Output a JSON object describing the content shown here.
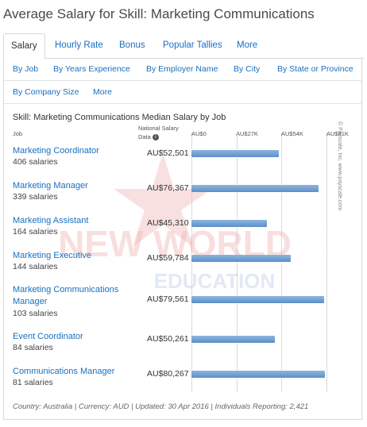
{
  "page": {
    "title": "Average Salary for Skill: Marketing Communications"
  },
  "tabs": [
    {
      "label": "Salary",
      "active": true
    },
    {
      "label": "Hourly Rate"
    },
    {
      "label": "Bonus"
    },
    {
      "label": "Popular Tallies"
    },
    {
      "label": "More"
    }
  ],
  "subnav": {
    "row1": [
      "By Job",
      "By Years Experience",
      "By Employer Name",
      "By City",
      "By State or Province"
    ],
    "row2": [
      "By Company Size",
      "More"
    ]
  },
  "chart": {
    "title": "Skill: Marketing Communications Median Salary by Job",
    "col_job": "Job",
    "col_national_line1": "National Salary",
    "col_national_line2": "Data",
    "info_icon": "i",
    "ticks": [
      "AU$0",
      "AU$27K",
      "AU$54K",
      "AU$81K"
    ],
    "copyright": "© Payscale, Inc. www.payscale.com",
    "watermark": {
      "line1": "NEW WORLD",
      "line2": "EDUCATION"
    },
    "footer": "Country: Australia | Currency: AUD | Updated: 30 Apr 2016 | Individuals Reporting: 2,421"
  },
  "chart_data": {
    "type": "bar",
    "orientation": "horizontal",
    "title": "Skill: Marketing Communications Median Salary by Job",
    "xlim": [
      0,
      81000
    ],
    "currency": "AUD",
    "grid": true,
    "categories": [
      "Marketing Coordinator",
      "Marketing Manager",
      "Marketing Assistant",
      "Marketing Executive",
      "Marketing Communications Manager",
      "Event Coordinator",
      "Communications Manager"
    ],
    "values": [
      52501,
      76367,
      45310,
      59784,
      79561,
      50261,
      80267
    ],
    "value_labels": [
      "AU$52,501",
      "AU$76,367",
      "AU$45,310",
      "AU$59,784",
      "AU$79,561",
      "AU$50,261",
      "AU$80,267"
    ],
    "counts": [
      "406 salaries",
      "339 salaries",
      "164 salaries",
      "144 salaries",
      "103 salaries",
      "84 salaries",
      "81 salaries"
    ],
    "color": "#6b9bd1"
  }
}
